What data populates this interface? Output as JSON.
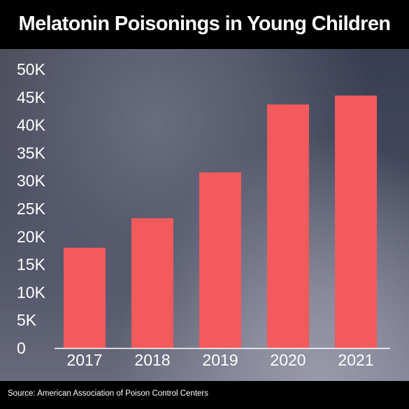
{
  "chart_data": {
    "type": "bar",
    "title": "Melatonin Poisonings in Young Children",
    "categories": [
      "2017",
      "2018",
      "2019",
      "2020",
      "2021"
    ],
    "values": [
      18000,
      23300,
      31500,
      43700,
      45300
    ],
    "ylim": [
      0,
      50000
    ],
    "yticks": [
      0,
      5000,
      10000,
      15000,
      20000,
      25000,
      30000,
      35000,
      40000,
      45000,
      50000
    ],
    "ytick_labels": [
      "0",
      "5K",
      "10K",
      "15K",
      "20K",
      "25K",
      "30K",
      "35K",
      "40K",
      "45K",
      "50K"
    ],
    "grid": false,
    "bar_color": "#f25a5c",
    "source": "Source: American Association of Poison Control Centers"
  }
}
